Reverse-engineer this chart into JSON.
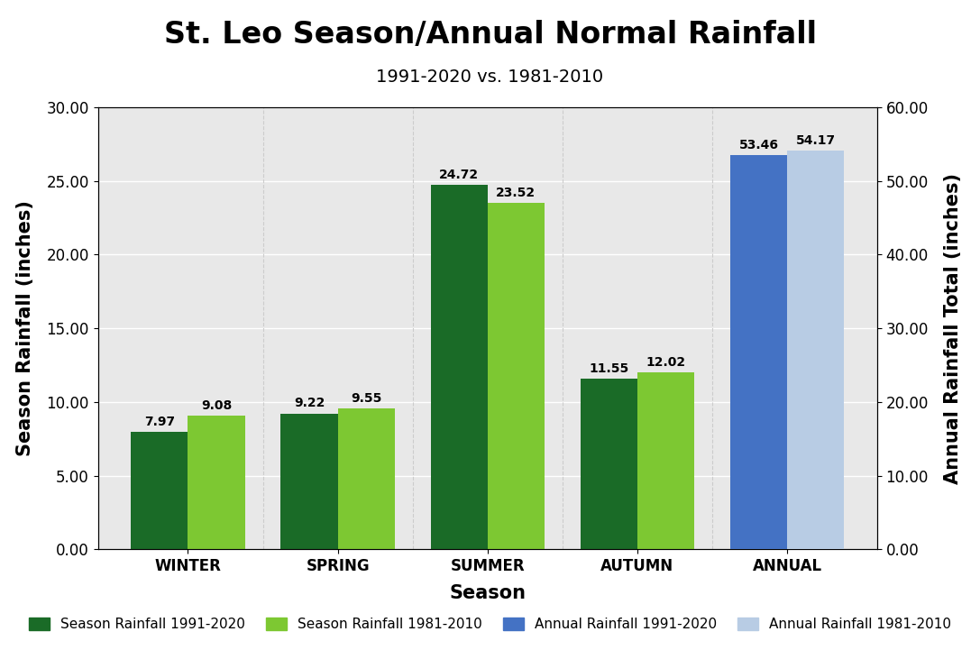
{
  "title": "St. Leo Season/Annual Normal Rainfall",
  "subtitle": "1991-2020 vs. 1981-2010",
  "xlabel": "Season",
  "ylabel_left": "Season Rainfall (inches)",
  "ylabel_right": "Annual Rainfall Total (inches)",
  "seasons": [
    "WINTER",
    "SPRING",
    "SUMMER",
    "AUTUMN"
  ],
  "annual_label": "ANNUAL",
  "season_2020": [
    7.97,
    9.22,
    24.72,
    11.55
  ],
  "season_2010": [
    9.08,
    9.55,
    23.52,
    12.02
  ],
  "annual_2020": 53.46,
  "annual_2010": 54.17,
  "color_season_2020": "#1a6b27",
  "color_season_2010": "#7dc832",
  "color_annual_2020": "#4472c4",
  "color_annual_2010": "#b8cce4",
  "ylim_left": [
    0,
    30
  ],
  "ylim_right": [
    0,
    60
  ],
  "yticks_left": [
    0,
    5,
    10,
    15,
    20,
    25,
    30
  ],
  "yticks_right": [
    0,
    10,
    20,
    30,
    40,
    50,
    60
  ],
  "legend_labels": [
    "Season Rainfall 1991-2020",
    "Season Rainfall 1981-2010",
    "Annual Rainfall 1991-2020",
    "Annual Rainfall 1981-2010"
  ],
  "bar_width": 0.38,
  "title_fontsize": 24,
  "subtitle_fontsize": 14,
  "axis_label_fontsize": 15,
  "tick_fontsize": 12,
  "annotation_fontsize": 10,
  "legend_fontsize": 11,
  "plot_bg_color": "#e8e8e8"
}
